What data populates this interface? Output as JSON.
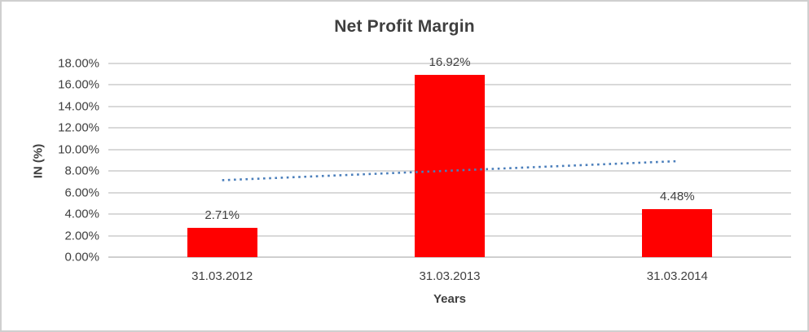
{
  "chart_data": {
    "type": "bar",
    "title": "Net Profit Margin",
    "xlabel": "Years",
    "ylabel": "IN (%)",
    "categories": [
      "31.03.2012",
      "31.03.2013",
      "31.03.2014"
    ],
    "values": [
      2.71,
      16.92,
      4.48
    ],
    "data_labels": [
      "2.71%",
      "16.92%",
      "4.48%"
    ],
    "ylim": [
      0,
      18
    ],
    "ytick_step": 2,
    "ytick_labels": [
      "0.00%",
      "2.00%",
      "4.00%",
      "6.00%",
      "8.00%",
      "10.00%",
      "12.00%",
      "14.00%",
      "16.00%",
      "18.00%"
    ],
    "grid": true,
    "legend": false,
    "bar_color": "#ff0000",
    "gridline_color": "#d9d9d9",
    "text_color": "#404040",
    "trendline": {
      "type": "linear",
      "style": "dotted",
      "color": "#4a7ebb",
      "start_value": 7.15,
      "end_value": 8.92
    }
  }
}
